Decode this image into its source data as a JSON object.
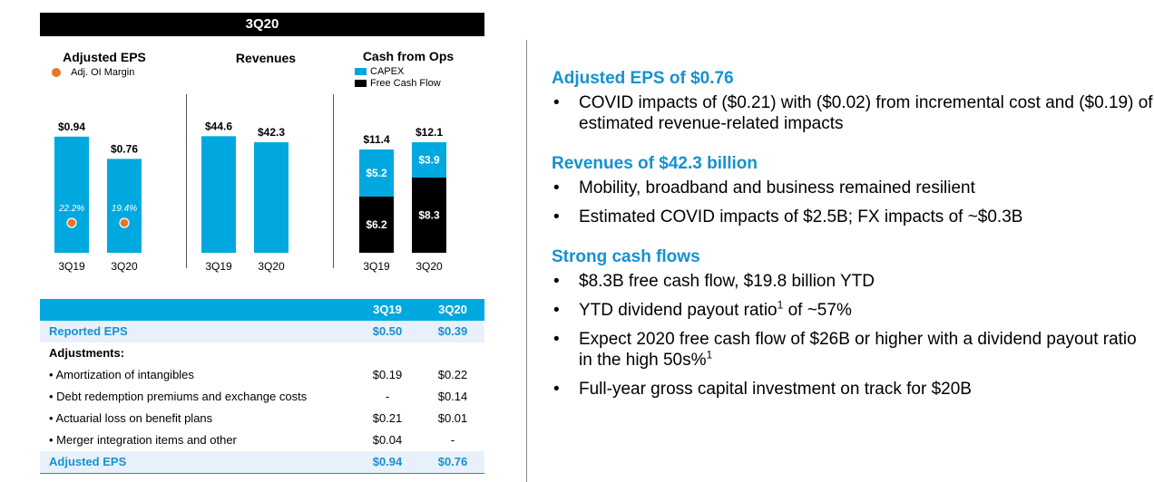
{
  "header": {
    "title": "3Q20"
  },
  "charts": {
    "eps": {
      "title": "Adjusted EPS",
      "legend_label": "Adj. OI Margin",
      "legend_color": "#e87722"
    },
    "revenues": {
      "title": "Revenues"
    },
    "cash": {
      "title": "Cash from Ops",
      "legend": [
        {
          "label": "CAPEX",
          "color": "#00a8e0"
        },
        {
          "label": "Free Cash Flow",
          "color": "#000000"
        }
      ]
    }
  },
  "chart_data": [
    {
      "type": "bar",
      "title": "Adjusted EPS",
      "categories": [
        "3Q19",
        "3Q20"
      ],
      "values": [
        0.94,
        0.76
      ],
      "value_labels": [
        "$0.94",
        "$0.76"
      ],
      "overlay": {
        "name": "Adj. OI Margin",
        "values": [
          22.2,
          19.4
        ],
        "labels": [
          "22.2%",
          "19.4%"
        ]
      },
      "ylim": [
        0,
        1.1
      ],
      "color": "#00a8e0"
    },
    {
      "type": "bar",
      "title": "Revenues",
      "categories": [
        "3Q19",
        "3Q20"
      ],
      "values": [
        44.6,
        42.3
      ],
      "value_labels": [
        "$44.6",
        "$42.3"
      ],
      "ylim": [
        0,
        52
      ],
      "color": "#00a8e0"
    },
    {
      "type": "bar",
      "title": "Cash from Ops",
      "stacked": true,
      "categories": [
        "3Q19",
        "3Q20"
      ],
      "totals": [
        11.4,
        12.1
      ],
      "total_labels": [
        "$11.4",
        "$12.1"
      ],
      "series": [
        {
          "name": "Free Cash Flow",
          "values": [
            6.2,
            8.3
          ],
          "labels": [
            "$6.2",
            "$8.3"
          ],
          "color": "#000000"
        },
        {
          "name": "CAPEX",
          "values": [
            5.2,
            3.9
          ],
          "labels": [
            "$5.2",
            "$3.9"
          ],
          "color": "#00a8e0"
        }
      ],
      "ylim": [
        0,
        15
      ]
    }
  ],
  "table": {
    "headers": [
      "",
      "3Q19",
      "3Q20"
    ],
    "rows": [
      {
        "label": "Reported EPS",
        "a": "$0.50",
        "b": "$0.39",
        "style": "blue"
      },
      {
        "label": "Adjustments:",
        "a": "",
        "b": "",
        "style": "bold"
      },
      {
        "label": "• Amortization of intangibles",
        "a": "$0.19",
        "b": "$0.22",
        "style": "normal"
      },
      {
        "label": "• Debt redemption premiums and exchange costs",
        "a": "-",
        "b": "$0.14",
        "style": "normal"
      },
      {
        "label": "• Actuarial loss on benefit plans",
        "a": "$0.21",
        "b": "$0.01",
        "style": "normal"
      },
      {
        "label": "• Merger integration items and other",
        "a": "$0.04",
        "b": "-",
        "style": "normal"
      },
      {
        "label": "Adjusted EPS",
        "a": "$0.94",
        "b": "$0.76",
        "style": "blue"
      }
    ]
  },
  "summary": {
    "eps": {
      "title": "Adjusted EPS of $0.76",
      "bullets": [
        "COVID impacts of ($0.21) with ($0.02) from incremental cost and ($0.19) of estimated revenue-related impacts"
      ]
    },
    "revenues": {
      "title": "Revenues of $42.3 billion",
      "bullets": [
        "Mobility, broadband and business remained resilient",
        "Estimated COVID impacts of $2.5B; FX impacts of ~$0.3B"
      ]
    },
    "cash": {
      "title": "Strong cash flows",
      "bullets": [
        {
          "pre": "$8.3B free cash flow, $19.8 billion YTD",
          "sup": "",
          "post": ""
        },
        {
          "pre": "YTD dividend payout ratio",
          "sup": "1",
          "post": " of ~57%"
        },
        {
          "pre": "Expect 2020 free cash flow of $26B or higher with a dividend payout ratio in the high 50s%",
          "sup": "1",
          "post": ""
        },
        {
          "pre": "Full-year gross capital investment on track for $20B",
          "sup": "",
          "post": ""
        }
      ]
    }
  }
}
